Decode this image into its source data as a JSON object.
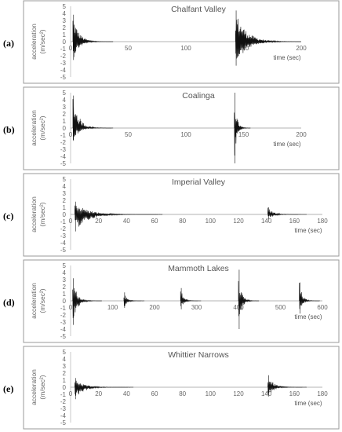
{
  "chart_data": [
    {
      "type": "line",
      "panel": "(a)",
      "title": "Chalfant Valley",
      "xlabel": "time (sec)",
      "ylabel_line1": "acceleration",
      "ylabel_line2": "(m/sec²)",
      "xlim": [
        0,
        200
      ],
      "ylim": [
        -5,
        5
      ],
      "xticks": [
        0,
        50,
        100,
        150,
        200
      ],
      "yticks": [
        5,
        4,
        3,
        2,
        1,
        0,
        -1,
        -2,
        -3,
        -4,
        -5
      ],
      "series": [
        {
          "bursts": [
            {
              "t": 2,
              "peak_pos": 3.8,
              "peak_neg": -2.6,
              "decay": 5
            },
            {
              "t": 143,
              "peak_pos": 4.4,
              "peak_neg": -3.4,
              "decay": 9
            }
          ]
        }
      ]
    },
    {
      "type": "line",
      "panel": "(b)",
      "title": "Coalinga",
      "xlabel": "time (sec)",
      "ylabel_line1": "acceleration",
      "ylabel_line2": "(m/sec²)",
      "xlim": [
        0,
        200
      ],
      "ylim": [
        -5,
        5
      ],
      "xticks": [
        0,
        50,
        100,
        150,
        200
      ],
      "yticks": [
        5,
        4,
        3,
        2,
        1,
        0,
        -1,
        -2,
        -3,
        -4,
        -5
      ],
      "series": [
        {
          "bursts": [
            {
              "t": 2,
              "peak_pos": 4.6,
              "peak_neg": -1.8,
              "decay": 5
            },
            {
              "t": 142,
              "peak_pos": 5.0,
              "peak_neg": -5.0,
              "decay": 2
            }
          ]
        }
      ]
    },
    {
      "type": "line",
      "panel": "(c)",
      "title": "Imperial Valley",
      "xlabel": "time (sec)",
      "ylabel_line1": "acceleration",
      "ylabel_line2": "(m/sec²)",
      "xlim": [
        0,
        180
      ],
      "ylim": [
        -5,
        5
      ],
      "xticks": [
        0,
        20,
        40,
        60,
        80,
        100,
        120,
        140,
        160,
        180
      ],
      "yticks": [
        5,
        4,
        3,
        2,
        1,
        0,
        -1,
        -2,
        -3,
        -4,
        -5
      ],
      "series": [
        {
          "bursts": [
            {
              "t": 3,
              "peak_pos": 1.8,
              "peak_neg": -2.4,
              "decay": 9
            },
            {
              "t": 141,
              "peak_pos": 1.0,
              "peak_neg": -0.7,
              "decay": 4
            }
          ]
        }
      ]
    },
    {
      "type": "line",
      "panel": "(d)",
      "title": "Mammoth Lakes",
      "xlabel": "time (sec)",
      "ylabel_line1": "acceleration",
      "ylabel_line2": "(m/sec²)",
      "xlim": [
        0,
        600
      ],
      "ylim": [
        -5,
        5
      ],
      "xticks": [
        0,
        100,
        200,
        300,
        400,
        500,
        600
      ],
      "yticks": [
        5,
        4,
        3,
        2,
        1,
        0,
        -1,
        -2,
        -3,
        -4,
        -5
      ],
      "series": [
        {
          "bursts": [
            {
              "t": 5,
              "peak_pos": 3.2,
              "peak_neg": -3.4,
              "decay": 10
            },
            {
              "t": 127,
              "peak_pos": 1.2,
              "peak_neg": -1.0,
              "decay": 7
            },
            {
              "t": 262,
              "peak_pos": 1.8,
              "peak_neg": -1.2,
              "decay": 7
            },
            {
              "t": 400,
              "peak_pos": 4.4,
              "peak_neg": -4.0,
              "decay": 7
            },
            {
              "t": 545,
              "peak_pos": 2.6,
              "peak_neg": -1.8,
              "decay": 7
            }
          ]
        }
      ]
    },
    {
      "type": "line",
      "panel": "(e)",
      "title": "Whittier Narrows",
      "xlabel": "time (sec)",
      "ylabel_line1": "acceleration",
      "ylabel_line2": "(m/sec²)",
      "xlim": [
        0,
        180
      ],
      "ylim": [
        -5,
        5
      ],
      "xticks": [
        0,
        20,
        40,
        60,
        80,
        100,
        120,
        140,
        160,
        180
      ],
      "yticks": [
        5,
        4,
        3,
        2,
        1,
        0,
        -1,
        -2,
        -3,
        -4,
        -5
      ],
      "series": [
        {
          "bursts": [
            {
              "t": 3,
              "peak_pos": 1.3,
              "peak_neg": -1.7,
              "decay": 6
            },
            {
              "t": 141,
              "peak_pos": 1.7,
              "peak_neg": -1.3,
              "decay": 4
            }
          ]
        }
      ]
    }
  ]
}
